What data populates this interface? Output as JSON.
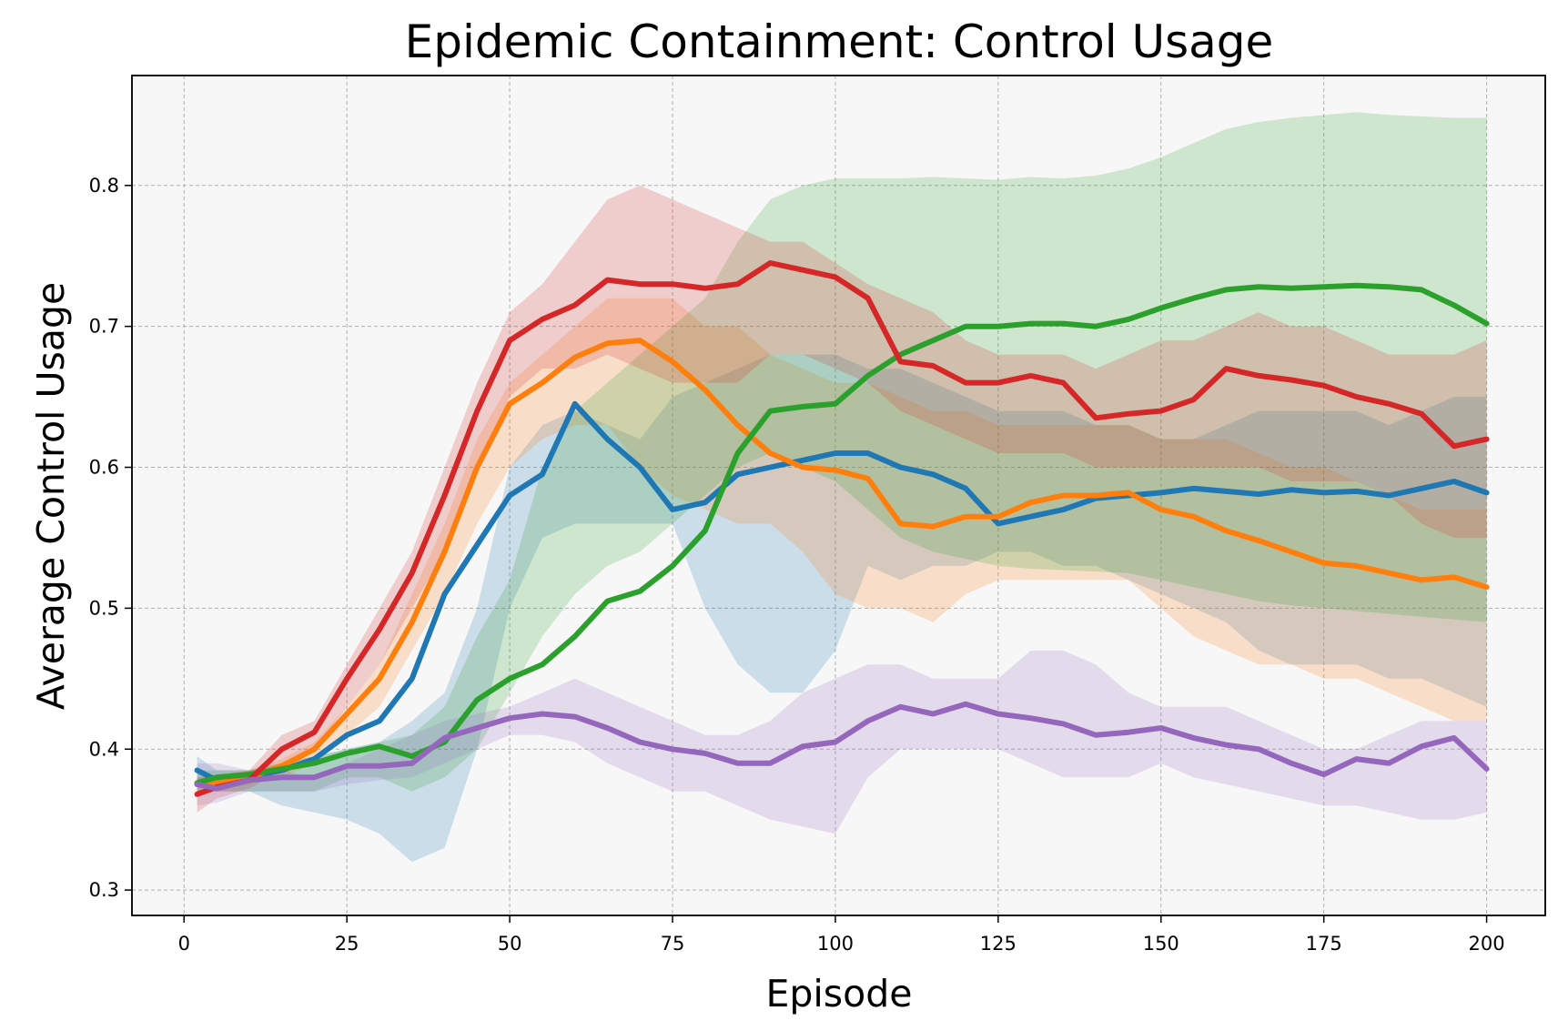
{
  "chart_data": {
    "type": "line",
    "title": "Epidemic Containment: Control Usage",
    "xlabel": "Episode",
    "ylabel": "Average Control Usage",
    "xlim": [
      -8,
      209
    ],
    "ylim": [
      0.282,
      0.878
    ],
    "xticks": [
      0,
      25,
      50,
      75,
      100,
      125,
      150,
      175,
      200
    ],
    "yticks": [
      0.3,
      0.4,
      0.5,
      0.6,
      0.7,
      0.8
    ],
    "xtick_labels": [
      "0",
      "25",
      "50",
      "75",
      "100",
      "125",
      "150",
      "175",
      "200"
    ],
    "ytick_labels": [
      "0.3",
      "0.4",
      "0.5",
      "0.6",
      "0.7",
      "0.8"
    ],
    "grid": true,
    "legend": "none",
    "band_opacity": 0.2,
    "series": [
      {
        "color": "#1f77b4",
        "x": [
          2,
          5,
          10,
          15,
          20,
          25,
          30,
          35,
          40,
          45,
          50,
          55,
          60,
          65,
          70,
          75,
          80,
          85,
          90,
          95,
          100,
          105,
          110,
          115,
          120,
          125,
          130,
          135,
          140,
          145,
          150,
          155,
          160,
          165,
          170,
          175,
          180,
          185,
          190,
          195,
          200
        ],
        "y": [
          0.385,
          0.378,
          0.38,
          0.385,
          0.393,
          0.41,
          0.42,
          0.45,
          0.51,
          0.545,
          0.58,
          0.595,
          0.645,
          0.62,
          0.6,
          0.57,
          0.575,
          0.595,
          0.6,
          0.605,
          0.61,
          0.61,
          0.6,
          0.595,
          0.585,
          0.56,
          0.565,
          0.57,
          0.578,
          0.58,
          0.582,
          0.585,
          0.583,
          0.581,
          0.584,
          0.582,
          0.583,
          0.58,
          0.585,
          0.59,
          0.582
        ],
        "upper": [
          0.395,
          0.385,
          0.385,
          0.39,
          0.395,
          0.4,
          0.405,
          0.42,
          0.44,
          0.5,
          0.6,
          0.63,
          0.64,
          0.63,
          0.62,
          0.65,
          0.66,
          0.67,
          0.68,
          0.68,
          0.68,
          0.67,
          0.67,
          0.66,
          0.65,
          0.64,
          0.64,
          0.64,
          0.63,
          0.63,
          0.62,
          0.62,
          0.63,
          0.64,
          0.64,
          0.64,
          0.64,
          0.63,
          0.64,
          0.65,
          0.65
        ],
        "lower": [
          0.375,
          0.37,
          0.37,
          0.36,
          0.355,
          0.35,
          0.34,
          0.32,
          0.33,
          0.4,
          0.5,
          0.55,
          0.56,
          0.56,
          0.56,
          0.56,
          0.5,
          0.46,
          0.44,
          0.44,
          0.47,
          0.53,
          0.52,
          0.53,
          0.53,
          0.54,
          0.54,
          0.53,
          0.53,
          0.52,
          0.51,
          0.5,
          0.49,
          0.47,
          0.46,
          0.46,
          0.46,
          0.45,
          0.45,
          0.44,
          0.43
        ]
      },
      {
        "color": "#ff7f0e",
        "x": [
          2,
          5,
          10,
          15,
          20,
          25,
          30,
          35,
          40,
          45,
          50,
          55,
          60,
          65,
          70,
          75,
          80,
          85,
          90,
          95,
          100,
          105,
          110,
          115,
          120,
          125,
          130,
          135,
          140,
          145,
          150,
          155,
          160,
          165,
          170,
          175,
          180,
          185,
          190,
          195,
          200
        ],
        "y": [
          0.375,
          0.376,
          0.38,
          0.388,
          0.4,
          0.425,
          0.45,
          0.49,
          0.54,
          0.6,
          0.645,
          0.66,
          0.678,
          0.688,
          0.69,
          0.675,
          0.655,
          0.63,
          0.61,
          0.6,
          0.598,
          0.592,
          0.56,
          0.558,
          0.565,
          0.565,
          0.575,
          0.58,
          0.58,
          0.582,
          0.57,
          0.565,
          0.555,
          0.548,
          0.54,
          0.532,
          0.53,
          0.525,
          0.52,
          0.522,
          0.515
        ],
        "upper": [
          0.38,
          0.382,
          0.385,
          0.393,
          0.405,
          0.43,
          0.46,
          0.51,
          0.56,
          0.62,
          0.66,
          0.68,
          0.7,
          0.72,
          0.72,
          0.72,
          0.7,
          0.7,
          0.68,
          0.67,
          0.66,
          0.66,
          0.65,
          0.64,
          0.64,
          0.63,
          0.63,
          0.63,
          0.63,
          0.63,
          0.62,
          0.62,
          0.62,
          0.61,
          0.6,
          0.6,
          0.59,
          0.58,
          0.57,
          0.57,
          0.57
        ],
        "lower": [
          0.37,
          0.37,
          0.375,
          0.38,
          0.39,
          0.41,
          0.43,
          0.47,
          0.51,
          0.56,
          0.6,
          0.62,
          0.63,
          0.63,
          0.6,
          0.58,
          0.57,
          0.56,
          0.56,
          0.54,
          0.51,
          0.5,
          0.5,
          0.49,
          0.51,
          0.52,
          0.52,
          0.52,
          0.52,
          0.52,
          0.5,
          0.48,
          0.47,
          0.46,
          0.46,
          0.45,
          0.45,
          0.44,
          0.43,
          0.42,
          0.42
        ]
      },
      {
        "color": "#2ca02c",
        "x": [
          2,
          5,
          10,
          15,
          20,
          25,
          30,
          35,
          40,
          45,
          50,
          55,
          60,
          65,
          70,
          75,
          80,
          85,
          90,
          95,
          100,
          105,
          110,
          115,
          120,
          125,
          130,
          135,
          140,
          145,
          150,
          155,
          160,
          165,
          170,
          175,
          180,
          185,
          190,
          195,
          200
        ],
        "y": [
          0.376,
          0.38,
          0.382,
          0.386,
          0.39,
          0.397,
          0.402,
          0.395,
          0.405,
          0.435,
          0.45,
          0.46,
          0.48,
          0.505,
          0.512,
          0.53,
          0.555,
          0.61,
          0.64,
          0.643,
          0.645,
          0.665,
          0.68,
          0.69,
          0.7,
          0.7,
          0.702,
          0.702,
          0.7,
          0.705,
          0.713,
          0.72,
          0.726,
          0.728,
          0.727,
          0.728,
          0.729,
          0.728,
          0.726,
          0.715,
          0.702
        ],
        "upper": [
          0.385,
          0.385,
          0.385,
          0.39,
          0.395,
          0.4,
          0.405,
          0.41,
          0.43,
          0.48,
          0.52,
          0.6,
          0.64,
          0.66,
          0.68,
          0.7,
          0.72,
          0.76,
          0.79,
          0.8,
          0.805,
          0.805,
          0.805,
          0.806,
          0.805,
          0.804,
          0.806,
          0.805,
          0.807,
          0.812,
          0.82,
          0.83,
          0.84,
          0.845,
          0.848,
          0.85,
          0.852,
          0.85,
          0.849,
          0.848,
          0.848
        ],
        "lower": [
          0.37,
          0.37,
          0.37,
          0.37,
          0.37,
          0.38,
          0.38,
          0.37,
          0.38,
          0.4,
          0.44,
          0.48,
          0.51,
          0.53,
          0.54,
          0.56,
          0.58,
          0.6,
          0.61,
          0.6,
          0.59,
          0.57,
          0.55,
          0.54,
          0.535,
          0.53,
          0.528,
          0.527,
          0.526,
          0.525,
          0.52,
          0.515,
          0.51,
          0.505,
          0.502,
          0.5,
          0.498,
          0.496,
          0.494,
          0.492,
          0.49
        ]
      },
      {
        "color": "#d62728",
        "x": [
          2,
          5,
          10,
          15,
          20,
          25,
          30,
          35,
          40,
          45,
          50,
          55,
          60,
          65,
          70,
          75,
          80,
          85,
          90,
          95,
          100,
          105,
          110,
          115,
          120,
          125,
          130,
          135,
          140,
          145,
          150,
          155,
          160,
          165,
          170,
          175,
          180,
          185,
          190,
          195,
          200
        ],
        "y": [
          0.368,
          0.373,
          0.378,
          0.4,
          0.412,
          0.45,
          0.485,
          0.525,
          0.58,
          0.64,
          0.69,
          0.705,
          0.715,
          0.733,
          0.73,
          0.73,
          0.727,
          0.73,
          0.745,
          0.74,
          0.735,
          0.72,
          0.675,
          0.672,
          0.66,
          0.66,
          0.665,
          0.66,
          0.635,
          0.638,
          0.64,
          0.648,
          0.67,
          0.665,
          0.662,
          0.658,
          0.65,
          0.645,
          0.638,
          0.615,
          0.62
        ],
        "upper": [
          0.38,
          0.38,
          0.385,
          0.41,
          0.42,
          0.46,
          0.5,
          0.54,
          0.6,
          0.66,
          0.71,
          0.73,
          0.76,
          0.79,
          0.8,
          0.79,
          0.78,
          0.77,
          0.76,
          0.76,
          0.745,
          0.73,
          0.72,
          0.71,
          0.69,
          0.68,
          0.68,
          0.68,
          0.67,
          0.68,
          0.69,
          0.69,
          0.7,
          0.71,
          0.7,
          0.7,
          0.69,
          0.68,
          0.68,
          0.68,
          0.69
        ],
        "lower": [
          0.355,
          0.365,
          0.372,
          0.385,
          0.4,
          0.43,
          0.46,
          0.5,
          0.54,
          0.6,
          0.65,
          0.67,
          0.67,
          0.68,
          0.67,
          0.66,
          0.66,
          0.66,
          0.68,
          0.68,
          0.67,
          0.66,
          0.64,
          0.63,
          0.62,
          0.61,
          0.61,
          0.61,
          0.6,
          0.6,
          0.6,
          0.6,
          0.6,
          0.6,
          0.59,
          0.59,
          0.59,
          0.58,
          0.56,
          0.55,
          0.55
        ]
      },
      {
        "color": "#9467bd",
        "x": [
          2,
          5,
          10,
          15,
          20,
          25,
          30,
          35,
          40,
          45,
          50,
          55,
          60,
          65,
          70,
          75,
          80,
          85,
          90,
          95,
          100,
          105,
          110,
          115,
          120,
          125,
          130,
          135,
          140,
          145,
          150,
          155,
          160,
          165,
          170,
          175,
          180,
          185,
          190,
          195,
          200
        ],
        "y": [
          0.375,
          0.372,
          0.378,
          0.38,
          0.38,
          0.388,
          0.388,
          0.39,
          0.408,
          0.415,
          0.422,
          0.425,
          0.423,
          0.415,
          0.405,
          0.4,
          0.397,
          0.39,
          0.39,
          0.402,
          0.405,
          0.42,
          0.43,
          0.425,
          0.432,
          0.425,
          0.422,
          0.418,
          0.41,
          0.412,
          0.415,
          0.408,
          0.403,
          0.4,
          0.39,
          0.382,
          0.393,
          0.39,
          0.402,
          0.408,
          0.386
        ],
        "upper": [
          0.39,
          0.39,
          0.385,
          0.385,
          0.38,
          0.39,
          0.4,
          0.41,
          0.42,
          0.425,
          0.43,
          0.44,
          0.45,
          0.44,
          0.43,
          0.42,
          0.41,
          0.41,
          0.42,
          0.44,
          0.45,
          0.46,
          0.46,
          0.45,
          0.45,
          0.45,
          0.47,
          0.47,
          0.46,
          0.44,
          0.43,
          0.43,
          0.43,
          0.42,
          0.41,
          0.4,
          0.4,
          0.41,
          0.42,
          0.42,
          0.42
        ],
        "lower": [
          0.36,
          0.362,
          0.37,
          0.37,
          0.37,
          0.375,
          0.378,
          0.38,
          0.39,
          0.4,
          0.41,
          0.41,
          0.405,
          0.39,
          0.38,
          0.37,
          0.37,
          0.36,
          0.35,
          0.345,
          0.34,
          0.38,
          0.4,
          0.4,
          0.4,
          0.4,
          0.39,
          0.38,
          0.38,
          0.38,
          0.39,
          0.38,
          0.375,
          0.37,
          0.365,
          0.36,
          0.36,
          0.355,
          0.35,
          0.35,
          0.355
        ]
      }
    ]
  }
}
